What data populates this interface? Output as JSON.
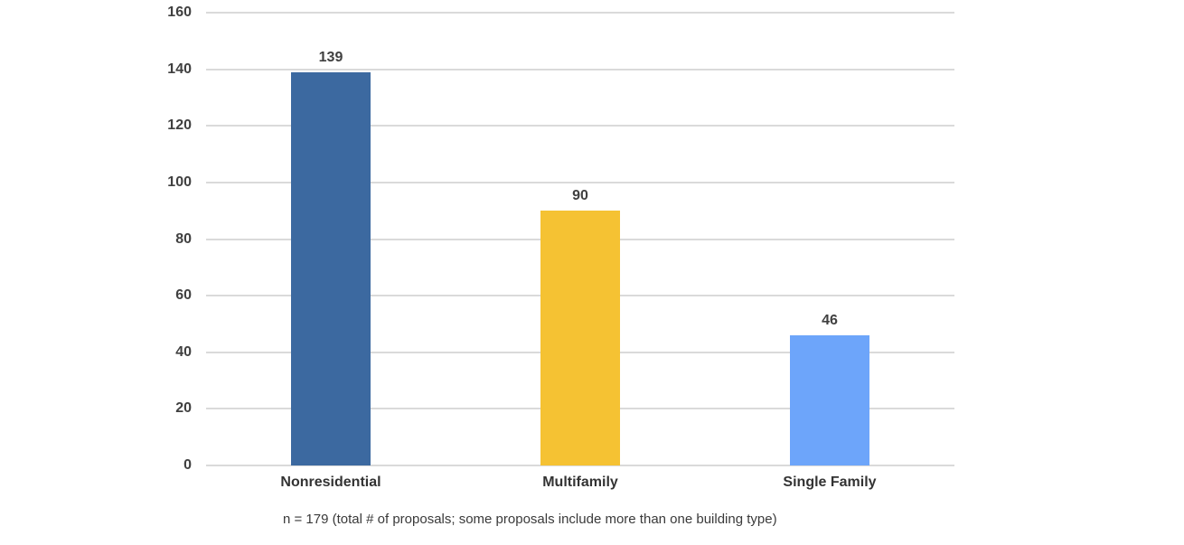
{
  "chart_data": {
    "type": "bar",
    "categories": [
      "Nonresidential",
      "Multifamily",
      "Single Family"
    ],
    "values": [
      139,
      90,
      46
    ],
    "bar_colors": [
      "#3C69A0",
      "#F5C233",
      "#6DA5FA"
    ],
    "title": "",
    "xlabel": "",
    "ylabel": "",
    "ylim": [
      0,
      160
    ],
    "yticks": [
      0,
      20,
      40,
      60,
      80,
      100,
      120,
      140,
      160
    ],
    "grid": true,
    "legend_position": "none",
    "data_labels": true,
    "caption": "n = 179 (total # of proposals; some proposals include more than one building type)"
  },
  "colors": {
    "background": "#FFFFFF",
    "grid_line": "#DADADA",
    "axis_tick_text": "#404040",
    "value_label_text": "#404040",
    "category_label_text": "#333333",
    "caption_text": "#3A3A3A"
  }
}
